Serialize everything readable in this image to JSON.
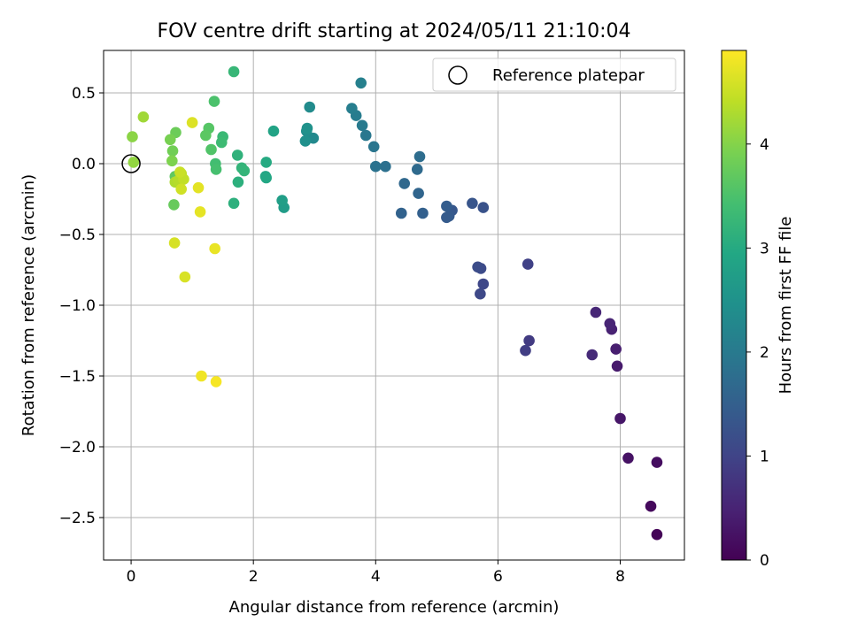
{
  "chart_data": {
    "type": "scatter",
    "title": "FOV centre drift starting at 2024/05/11 21:10:04",
    "xlabel": "Angular distance from reference (arcmin)",
    "ylabel": "Rotation from reference (arcmin)",
    "xlim": [
      -0.45,
      9.05
    ],
    "ylim": [
      -2.8,
      0.8
    ],
    "xticks": [
      0,
      2,
      4,
      6,
      8
    ],
    "xtick_labels": [
      "0",
      "2",
      "4",
      "6",
      "8"
    ],
    "yticks": [
      0.5,
      0.0,
      -0.5,
      -1.0,
      -1.5,
      -2.0,
      -2.5
    ],
    "ytick_labels": [
      "0.5",
      "0.0",
      "−0.5",
      "−1.0",
      "−1.5",
      "−2.0",
      "−2.5"
    ],
    "grid": true,
    "legend": {
      "placement": "upper-right",
      "label": "Reference platepar"
    },
    "reference_point": {
      "x": 0,
      "y": 0
    },
    "colorbar": {
      "label": "Hours from first FF file",
      "colormap": "viridis",
      "range": [
        0,
        4.9
      ],
      "ticks": [
        0,
        1,
        2,
        3,
        4
      ],
      "tick_labels": [
        "0",
        "1",
        "2",
        "3",
        "4"
      ]
    },
    "points": [
      {
        "x": 8.6,
        "y": -2.62,
        "c": 0.05
      },
      {
        "x": 8.5,
        "y": -2.42,
        "c": 0.12
      },
      {
        "x": 8.6,
        "y": -2.11,
        "c": 0.18
      },
      {
        "x": 8.13,
        "y": -2.08,
        "c": 0.24
      },
      {
        "x": 8.0,
        "y": -1.8,
        "c": 0.3
      },
      {
        "x": 7.95,
        "y": -1.43,
        "c": 0.36
      },
      {
        "x": 7.93,
        "y": -1.31,
        "c": 0.42
      },
      {
        "x": 7.86,
        "y": -1.17,
        "c": 0.47
      },
      {
        "x": 7.83,
        "y": -1.13,
        "c": 0.52
      },
      {
        "x": 7.6,
        "y": -1.05,
        "c": 0.55
      },
      {
        "x": 7.54,
        "y": -1.35,
        "c": 0.6
      },
      {
        "x": 6.51,
        "y": -1.25,
        "c": 0.85
      },
      {
        "x": 6.45,
        "y": -1.32,
        "c": 0.9
      },
      {
        "x": 6.49,
        "y": -0.71,
        "c": 0.95
      },
      {
        "x": 5.76,
        "y": -0.85,
        "c": 1.05
      },
      {
        "x": 5.71,
        "y": -0.92,
        "c": 1.08
      },
      {
        "x": 5.72,
        "y": -0.74,
        "c": 1.12
      },
      {
        "x": 5.67,
        "y": -0.73,
        "c": 1.15
      },
      {
        "x": 5.76,
        "y": -0.31,
        "c": 1.25
      },
      {
        "x": 5.58,
        "y": -0.28,
        "c": 1.3
      },
      {
        "x": 5.25,
        "y": -0.33,
        "c": 1.35
      },
      {
        "x": 5.2,
        "y": -0.37,
        "c": 1.4
      },
      {
        "x": 5.16,
        "y": -0.38,
        "c": 1.42
      },
      {
        "x": 5.16,
        "y": -0.3,
        "c": 1.45
      },
      {
        "x": 4.77,
        "y": -0.35,
        "c": 1.5
      },
      {
        "x": 4.42,
        "y": -0.35,
        "c": 1.55
      },
      {
        "x": 4.7,
        "y": -0.21,
        "c": 1.6
      },
      {
        "x": 4.47,
        "y": -0.14,
        "c": 1.65
      },
      {
        "x": 4.68,
        "y": -0.04,
        "c": 1.7
      },
      {
        "x": 4.72,
        "y": 0.05,
        "c": 1.75
      },
      {
        "x": 4.16,
        "y": -0.02,
        "c": 1.8
      },
      {
        "x": 4.0,
        "y": -0.02,
        "c": 1.85
      },
      {
        "x": 3.97,
        "y": 0.12,
        "c": 1.9
      },
      {
        "x": 3.84,
        "y": 0.2,
        "c": 1.95
      },
      {
        "x": 3.78,
        "y": 0.27,
        "c": 2.0
      },
      {
        "x": 3.68,
        "y": 0.34,
        "c": 2.05
      },
      {
        "x": 3.61,
        "y": 0.39,
        "c": 2.08
      },
      {
        "x": 3.76,
        "y": 0.57,
        "c": 2.12
      },
      {
        "x": 2.98,
        "y": 0.18,
        "c": 2.3
      },
      {
        "x": 2.92,
        "y": 0.4,
        "c": 2.35
      },
      {
        "x": 2.87,
        "y": 0.23,
        "c": 2.4
      },
      {
        "x": 2.85,
        "y": 0.16,
        "c": 2.45
      },
      {
        "x": 2.88,
        "y": 0.25,
        "c": 2.5
      },
      {
        "x": 2.5,
        "y": -0.31,
        "c": 2.7
      },
      {
        "x": 2.47,
        "y": -0.26,
        "c": 2.75
      },
      {
        "x": 2.33,
        "y": 0.23,
        "c": 2.85
      },
      {
        "x": 2.2,
        "y": -0.09,
        "c": 2.9
      },
      {
        "x": 2.21,
        "y": -0.1,
        "c": 2.95
      },
      {
        "x": 2.21,
        "y": 0.01,
        "c": 3.0
      },
      {
        "x": 1.75,
        "y": -0.13,
        "c": 3.1
      },
      {
        "x": 1.68,
        "y": -0.28,
        "c": 3.12
      },
      {
        "x": 1.74,
        "y": 0.06,
        "c": 3.15
      },
      {
        "x": 1.81,
        "y": -0.03,
        "c": 3.2
      },
      {
        "x": 1.85,
        "y": -0.05,
        "c": 3.22
      },
      {
        "x": 1.68,
        "y": 0.65,
        "c": 3.25
      },
      {
        "x": 1.5,
        "y": 0.19,
        "c": 3.3
      },
      {
        "x": 1.48,
        "y": 0.15,
        "c": 3.35
      },
      {
        "x": 1.38,
        "y": 0.0,
        "c": 3.4
      },
      {
        "x": 1.39,
        "y": -0.04,
        "c": 3.45
      },
      {
        "x": 1.36,
        "y": 0.44,
        "c": 3.5
      },
      {
        "x": 1.31,
        "y": 0.1,
        "c": 3.55
      },
      {
        "x": 1.27,
        "y": 0.25,
        "c": 3.6
      },
      {
        "x": 1.22,
        "y": 0.2,
        "c": 3.65
      },
      {
        "x": 0.72,
        "y": -0.09,
        "c": 3.7
      },
      {
        "x": 0.7,
        "y": -0.29,
        "c": 3.75
      },
      {
        "x": 0.73,
        "y": 0.22,
        "c": 3.8
      },
      {
        "x": 0.68,
        "y": 0.09,
        "c": 3.85
      },
      {
        "x": 0.64,
        "y": 0.17,
        "c": 3.9
      },
      {
        "x": 0.67,
        "y": 0.02,
        "c": 3.95
      },
      {
        "x": 0.02,
        "y": 0.19,
        "c": 4.05
      },
      {
        "x": 0.04,
        "y": 0.01,
        "c": 4.1
      },
      {
        "x": 0.2,
        "y": 0.33,
        "c": 4.2
      },
      {
        "x": 0.72,
        "y": -0.13,
        "c": 4.3
      },
      {
        "x": 0.77,
        "y": -0.12,
        "c": 4.35
      },
      {
        "x": 0.82,
        "y": -0.07,
        "c": 4.4
      },
      {
        "x": 0.86,
        "y": -0.11,
        "c": 4.45
      },
      {
        "x": 0.8,
        "y": -0.06,
        "c": 4.5
      },
      {
        "x": 0.82,
        "y": -0.18,
        "c": 4.55
      },
      {
        "x": 0.71,
        "y": -0.56,
        "c": 4.6
      },
      {
        "x": 0.88,
        "y": -0.8,
        "c": 4.62
      },
      {
        "x": 1.0,
        "y": 0.29,
        "c": 4.65
      },
      {
        "x": 1.1,
        "y": -0.17,
        "c": 4.7
      },
      {
        "x": 1.13,
        "y": -0.34,
        "c": 4.72
      },
      {
        "x": 1.37,
        "y": -0.6,
        "c": 4.75
      },
      {
        "x": 1.15,
        "y": -1.5,
        "c": 4.8
      },
      {
        "x": 1.39,
        "y": -1.54,
        "c": 4.85
      }
    ]
  }
}
